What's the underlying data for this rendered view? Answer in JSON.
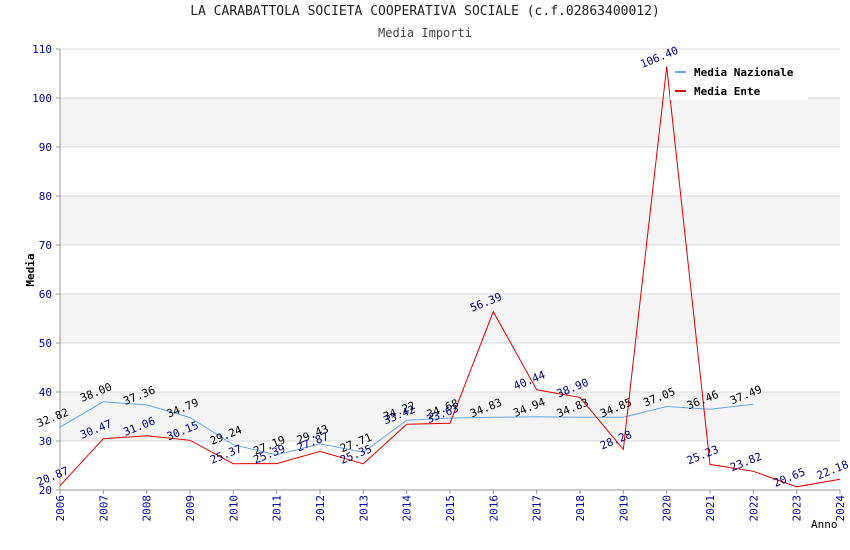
{
  "chart_data": {
    "type": "line",
    "title": "LA CARABATTOLA SOCIETA COOPERATIVA SOCIALE (c.f.02863400012)",
    "subtitle": "Media Importi",
    "xlabel": "Anno",
    "ylabel": "Media",
    "ylim": [
      20,
      110
    ],
    "yticks": [
      "20",
      "30",
      "40",
      "50",
      "60",
      "70",
      "80",
      "90",
      "100",
      "110"
    ],
    "categories": [
      "2006",
      "2007",
      "2008",
      "2009",
      "2010",
      "2011",
      "2012",
      "2013",
      "2014",
      "2015",
      "2016",
      "2017",
      "2018",
      "2019",
      "2020",
      "2021",
      "2022",
      "2023",
      "2024"
    ],
    "legend_position": "top-right",
    "grid": true,
    "series": [
      {
        "name": "Media Nazionale",
        "color": "#6aa7e0",
        "label_color": "#000000",
        "values": [
          32.82,
          38.0,
          37.36,
          34.79,
          29.24,
          27.19,
          29.43,
          27.71,
          34.22,
          34.68,
          34.83,
          34.94,
          34.83,
          34.85,
          37.05,
          36.46,
          37.49,
          null,
          null
        ],
        "labels": [
          "32.82",
          "38.00",
          "37.36",
          "34.79",
          "29.24",
          "27.19",
          "29.43",
          "27.71",
          "34.22",
          "34.68",
          "34.83",
          "34.94",
          "34.83",
          "34.85",
          "37.05",
          "36.46",
          "37.49",
          null,
          null
        ]
      },
      {
        "name": "Media Ente",
        "color": "#e00000",
        "label_color": "#00007a",
        "values": [
          20.87,
          30.47,
          31.06,
          30.15,
          25.37,
          25.39,
          27.87,
          25.35,
          33.42,
          33.63,
          56.39,
          40.44,
          38.9,
          28.28,
          106.4,
          25.23,
          23.82,
          20.65,
          22.18
        ],
        "labels": [
          "20.87",
          "30.47",
          "31.06",
          "30.15",
          "25.37",
          "25.39",
          "27.87",
          "25.35",
          "33.42",
          "33.63",
          "56.39",
          "40.44",
          "38.90",
          "28.28",
          "106.40",
          "25.23",
          "23.82",
          "20.65",
          "22.18"
        ]
      }
    ]
  }
}
